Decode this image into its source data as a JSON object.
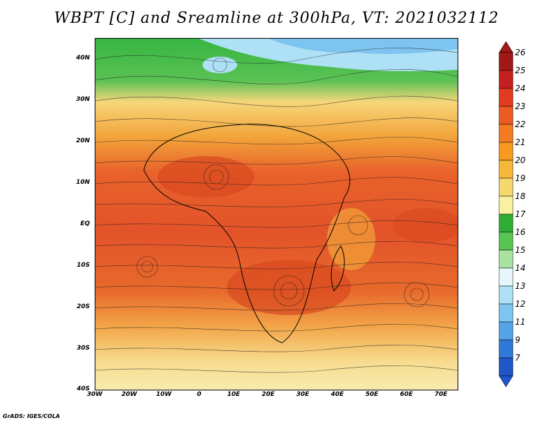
{
  "title": "WBPT [C] and Sreamline at 300hPa, VT: 2021032112",
  "credit": "GrADS: IGES/COLA",
  "map": {
    "lat_labels": [
      "40N",
      "30N",
      "20N",
      "10N",
      "EQ",
      "10S",
      "20S",
      "30S",
      "40S"
    ],
    "lon_labels": [
      "30W",
      "20W",
      "10W",
      "0",
      "10E",
      "20E",
      "30E",
      "40E",
      "50E",
      "60E",
      "70E"
    ]
  },
  "colorbar": {
    "labels": [
      "26",
      "25",
      "24",
      "23",
      "22",
      "21",
      "20",
      "19",
      "18",
      "17",
      "16",
      "15",
      "14",
      "13",
      "12",
      "11",
      "9",
      "7"
    ],
    "colors": [
      "#a01818",
      "#c61f1f",
      "#e33b1f",
      "#ee5b21",
      "#f47b22",
      "#f79a1d",
      "#f6b73b",
      "#f7d86d",
      "#f8f1a0",
      "#2fae36",
      "#58c552",
      "#a8e3a2",
      "#e6f7fa",
      "#aee0f6",
      "#7ec4f0",
      "#53a3e6",
      "#3079d8",
      "#1f56c8"
    ]
  }
}
